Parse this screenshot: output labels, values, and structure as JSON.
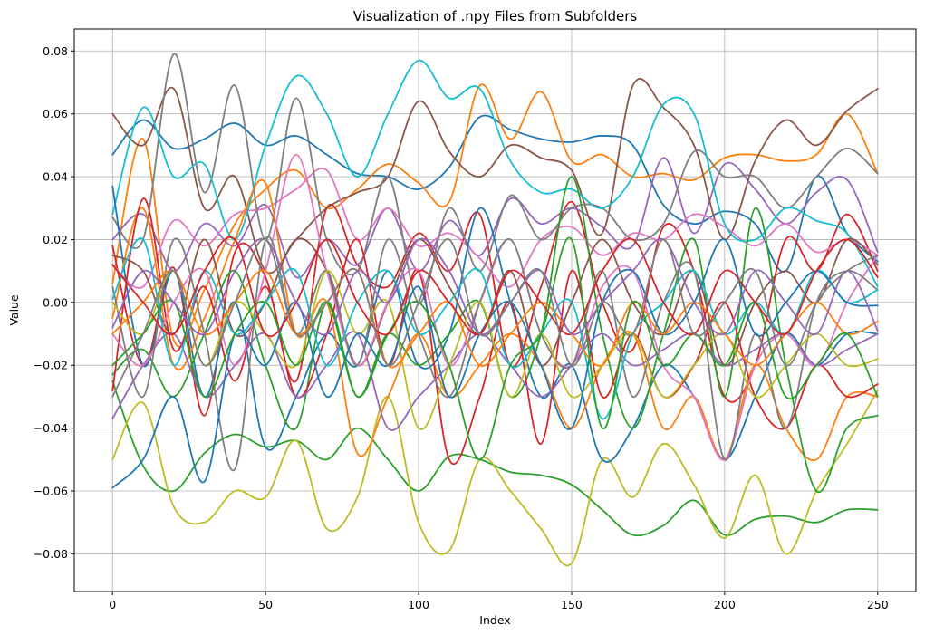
{
  "chart_data": {
    "type": "line",
    "title": "Visualization of .npy Files from Subfolders",
    "xlabel": "Index",
    "ylabel": "Value",
    "xlim": [
      -12.5,
      262.5
    ],
    "ylim": [
      -0.092,
      0.087
    ],
    "xticks": [
      0,
      50,
      100,
      150,
      200,
      250
    ],
    "yticks": [
      -0.08,
      -0.06,
      -0.04,
      -0.02,
      0.0,
      0.02,
      0.04,
      0.06,
      0.08
    ],
    "ytick_labels": [
      "−0.08",
      "−0.06",
      "−0.04",
      "−0.02",
      "0.00",
      "0.02",
      "0.04",
      "0.06",
      "0.08"
    ],
    "grid": true,
    "legend": "none",
    "x": [
      0,
      10,
      20,
      30,
      40,
      50,
      60,
      70,
      80,
      90,
      100,
      110,
      120,
      130,
      140,
      150,
      160,
      170,
      180,
      190,
      200,
      210,
      220,
      230,
      240,
      250
    ],
    "series": [
      {
        "color": "#1f77b4",
        "values": [
          0.047,
          0.058,
          0.049,
          0.052,
          0.057,
          0.05,
          0.053,
          0.047,
          0.041,
          0.04,
          0.036,
          0.043,
          0.059,
          0.055,
          0.052,
          0.051,
          0.053,
          0.05,
          0.031,
          0.025,
          0.029,
          0.025,
          0.01,
          0.04,
          0.022,
          0.013
        ]
      },
      {
        "color": "#ff7f0e",
        "values": [
          0.006,
          0.052,
          -0.012,
          0.004,
          0.025,
          0.036,
          0.042,
          0.03,
          0.036,
          0.044,
          0.038,
          0.032,
          0.069,
          0.052,
          0.067,
          0.045,
          0.047,
          0.04,
          0.041,
          0.039,
          0.046,
          0.047,
          0.045,
          0.047,
          0.06,
          0.041
        ]
      },
      {
        "color": "#2ca02c",
        "values": [
          -0.025,
          -0.052,
          -0.06,
          -0.048,
          -0.042,
          -0.046,
          -0.044,
          -0.05,
          -0.04,
          -0.05,
          -0.06,
          -0.049,
          -0.05,
          -0.054,
          -0.055,
          -0.058,
          -0.066,
          -0.074,
          -0.071,
          -0.063,
          -0.074,
          -0.069,
          -0.068,
          -0.07,
          -0.066,
          -0.066
        ]
      },
      {
        "color": "#d62728",
        "values": [
          0.018,
          -0.02,
          0.011,
          -0.036,
          0.016,
          0.008,
          -0.025,
          0.03,
          0.012,
          0.005,
          0.022,
          0.01,
          0.028,
          -0.02,
          0.005,
          0.032,
          0.0,
          -0.015,
          0.024,
          0.01,
          -0.03,
          -0.02,
          0.02,
          0.01,
          0.028,
          0.01
        ]
      },
      {
        "color": "#9467bd",
        "values": [
          0.02,
          0.028,
          0.01,
          0.025,
          0.018,
          0.031,
          0.008,
          0.02,
          0.012,
          0.03,
          0.01,
          0.026,
          0.015,
          0.033,
          0.025,
          0.03,
          0.024,
          0.018,
          0.046,
          0.022,
          0.044,
          0.036,
          0.025,
          0.035,
          0.039,
          0.016
        ]
      },
      {
        "color": "#8c564b",
        "values": [
          0.06,
          0.05,
          0.068,
          0.03,
          0.04,
          0.01,
          0.02,
          0.03,
          0.035,
          0.04,
          0.064,
          0.048,
          0.04,
          0.05,
          0.046,
          0.042,
          0.022,
          0.069,
          0.062,
          0.05,
          0.02,
          0.045,
          0.058,
          0.05,
          0.061,
          0.068
        ]
      },
      {
        "color": "#e377c2",
        "values": [
          0.012,
          0.005,
          0.026,
          0.018,
          0.028,
          0.03,
          0.036,
          0.042,
          0.02,
          0.03,
          0.018,
          0.022,
          0.014,
          0.005,
          0.02,
          0.024,
          0.015,
          0.022,
          0.02,
          0.028,
          0.024,
          0.018,
          0.025,
          0.016,
          0.02,
          0.015
        ]
      },
      {
        "color": "#7f7f7f",
        "values": [
          0.027,
          0.02,
          0.079,
          0.035,
          0.069,
          0.02,
          0.065,
          0.02,
          0.01,
          0.04,
          0.0,
          0.03,
          0.01,
          0.034,
          0.02,
          0.03,
          0.03,
          0.02,
          0.025,
          0.048,
          0.04,
          0.04,
          0.03,
          0.04,
          0.049,
          0.041
        ]
      },
      {
        "color": "#bcbd22",
        "values": [
          -0.05,
          -0.032,
          -0.065,
          -0.07,
          -0.06,
          -0.062,
          -0.044,
          -0.072,
          -0.062,
          -0.03,
          -0.07,
          -0.079,
          -0.05,
          -0.06,
          -0.072,
          -0.083,
          -0.05,
          -0.062,
          -0.045,
          -0.058,
          -0.075,
          -0.055,
          -0.08,
          -0.06,
          -0.045,
          -0.028
        ]
      },
      {
        "color": "#17becf",
        "values": [
          0.028,
          0.062,
          0.04,
          0.044,
          0.02,
          0.05,
          0.072,
          0.06,
          0.04,
          0.06,
          0.077,
          0.065,
          0.068,
          0.045,
          0.035,
          0.036,
          0.03,
          0.04,
          0.063,
          0.06,
          0.025,
          0.02,
          0.03,
          0.026,
          0.022,
          0.005
        ]
      },
      {
        "color": "#1f77b4",
        "values": [
          0.037,
          -0.02,
          0.01,
          -0.03,
          0.0,
          -0.046,
          -0.03,
          -0.01,
          -0.02,
          0.01,
          -0.02,
          -0.01,
          0.03,
          0.0,
          -0.03,
          -0.02,
          -0.05,
          -0.04,
          -0.02,
          -0.03,
          -0.05,
          -0.03,
          -0.01,
          -0.02,
          -0.01,
          -0.01
        ]
      },
      {
        "color": "#ff7f0e",
        "values": [
          -0.005,
          0.03,
          -0.02,
          -0.005,
          0.02,
          0.038,
          -0.01,
          0.0,
          -0.048,
          -0.03,
          -0.01,
          -0.03,
          -0.02,
          -0.01,
          -0.02,
          -0.04,
          -0.02,
          -0.01,
          -0.04,
          -0.03,
          -0.05,
          -0.02,
          -0.04,
          -0.05,
          -0.03,
          -0.03
        ]
      },
      {
        "color": "#2ca02c",
        "values": [
          -0.023,
          -0.015,
          -0.03,
          -0.01,
          0.01,
          -0.02,
          -0.04,
          0.0,
          -0.03,
          -0.01,
          -0.02,
          -0.01,
          0.0,
          -0.03,
          -0.01,
          0.04,
          -0.01,
          -0.04,
          -0.01,
          0.02,
          -0.03,
          0.03,
          -0.02,
          -0.06,
          -0.04,
          -0.036
        ]
      },
      {
        "color": "#d62728",
        "values": [
          -0.028,
          0.033,
          -0.015,
          0.005,
          -0.025,
          0.005,
          -0.03,
          -0.01,
          0.02,
          -0.02,
          0.01,
          -0.05,
          -0.03,
          0.0,
          -0.045,
          0.01,
          -0.03,
          -0.01,
          -0.03,
          -0.02,
          0.0,
          -0.03,
          -0.04,
          -0.02,
          -0.03,
          -0.026
        ]
      },
      {
        "color": "#9467bd",
        "values": [
          -0.037,
          -0.02,
          -0.01,
          -0.03,
          -0.02,
          -0.01,
          -0.03,
          -0.02,
          -0.01,
          -0.04,
          -0.03,
          -0.02,
          -0.01,
          -0.02,
          -0.03,
          -0.02,
          -0.01,
          -0.02,
          -0.015,
          -0.01,
          -0.02,
          -0.015,
          -0.01,
          -0.02,
          -0.015,
          -0.01
        ]
      },
      {
        "color": "#8c564b",
        "values": [
          0.015,
          0.01,
          -0.01,
          0.02,
          -0.01,
          0.0,
          0.02,
          0.01,
          -0.02,
          0.0,
          0.02,
          0.005,
          -0.01,
          0.01,
          -0.02,
          0.0,
          0.02,
          0.0,
          -0.01,
          0.01,
          -0.02,
          0.0,
          0.01,
          0.0,
          0.02,
          0.012
        ]
      },
      {
        "color": "#e377c2",
        "values": [
          -0.01,
          -0.02,
          0.0,
          0.01,
          -0.02,
          0.01,
          0.047,
          0.01,
          -0.02,
          0.0,
          0.01,
          -0.02,
          0.0,
          0.02,
          -0.01,
          -0.02,
          0.005,
          0.01,
          -0.02,
          -0.03,
          -0.05,
          -0.02,
          -0.01,
          -0.02,
          0.0,
          0.015
        ]
      },
      {
        "color": "#7f7f7f",
        "values": [
          0.005,
          -0.03,
          0.02,
          -0.01,
          -0.053,
          0.02,
          -0.01,
          0.01,
          -0.02,
          0.02,
          -0.01,
          -0.03,
          0.0,
          0.02,
          -0.01,
          -0.02,
          0.01,
          -0.03,
          0.0,
          0.01,
          -0.05,
          -0.01,
          -0.04,
          0.0,
          0.01,
          0.004
        ]
      },
      {
        "color": "#bcbd22",
        "values": [
          0.0,
          -0.01,
          0.01,
          -0.02,
          0.0,
          -0.01,
          -0.02,
          0.01,
          -0.01,
          0.0,
          -0.04,
          -0.02,
          0.0,
          -0.03,
          -0.01,
          -0.03,
          -0.02,
          -0.01,
          -0.03,
          -0.02,
          -0.01,
          -0.03,
          -0.02,
          -0.01,
          -0.02,
          -0.018
        ]
      },
      {
        "color": "#17becf",
        "values": [
          0.001,
          0.02,
          -0.02,
          0.01,
          -0.01,
          0.0,
          0.01,
          -0.02,
          0.0,
          0.01,
          -0.01,
          0.0,
          0.01,
          -0.02,
          -0.01,
          0.0,
          -0.037,
          -0.01,
          0.0,
          0.01,
          -0.01,
          0.0,
          -0.01,
          0.01,
          0.0,
          0.004
        ]
      },
      {
        "color": "#1f77b4",
        "values": [
          -0.059,
          -0.05,
          -0.03,
          -0.057,
          -0.01,
          -0.02,
          0.0,
          -0.03,
          -0.01,
          -0.02,
          0.005,
          -0.03,
          -0.01,
          0.0,
          -0.02,
          -0.04,
          0.0,
          0.01,
          -0.01,
          0.0,
          0.02,
          -0.01,
          0.0,
          0.01,
          0.0,
          -0.001
        ]
      },
      {
        "color": "#ff7f0e",
        "values": [
          -0.01,
          0.0,
          0.01,
          -0.01,
          0.0,
          0.01,
          -0.01,
          0.0,
          0.01,
          -0.02,
          -0.01,
          0.0,
          -0.02,
          -0.01,
          0.0,
          -0.01,
          -0.02,
          0.0,
          -0.01,
          0.0,
          -0.01,
          -0.02,
          -0.01,
          0.0,
          -0.01,
          -0.006
        ]
      },
      {
        "color": "#2ca02c",
        "values": [
          -0.02,
          -0.01,
          0.0,
          -0.03,
          -0.01,
          0.0,
          -0.02,
          0.0,
          -0.03,
          -0.01,
          0.0,
          -0.02,
          -0.05,
          -0.02,
          -0.01,
          0.02,
          -0.04,
          0.0,
          -0.02,
          -0.01,
          -0.02,
          0.0,
          -0.03,
          -0.02,
          -0.01,
          -0.03
        ]
      },
      {
        "color": "#d62728",
        "values": [
          0.012,
          0.0,
          -0.01,
          0.01,
          0.02,
          -0.01,
          0.0,
          0.02,
          0.0,
          -0.01,
          0.01,
          0.0,
          -0.01,
          0.01,
          0.0,
          -0.01,
          0.01,
          0.02,
          0.0,
          -0.01,
          0.01,
          0.0,
          -0.01,
          0.01,
          0.02,
          0.008
        ]
      },
      {
        "color": "#9467bd",
        "values": [
          -0.008,
          0.01,
          0.0,
          -0.01,
          0.01,
          0.02,
          0.0,
          -0.01,
          0.01,
          0.0,
          0.02,
          0.01,
          -0.01,
          0.0,
          0.01,
          -0.01,
          0.0,
          0.01,
          0.02,
          0.0,
          -0.01,
          0.01,
          0.0,
          -0.01,
          0.01,
          -0.009
        ]
      },
      {
        "color": "#7f7f7f",
        "values": [
          -0.03,
          -0.01,
          0.01,
          -0.02,
          0.0,
          0.02,
          -0.01,
          0.0,
          0.01,
          -0.02,
          0.0,
          0.02,
          -0.01,
          0.0,
          0.01,
          -0.02,
          0.0,
          -0.01,
          0.02,
          -0.01,
          0.0,
          0.01,
          -0.02,
          0.0,
          0.01,
          0.015
        ]
      }
    ]
  }
}
